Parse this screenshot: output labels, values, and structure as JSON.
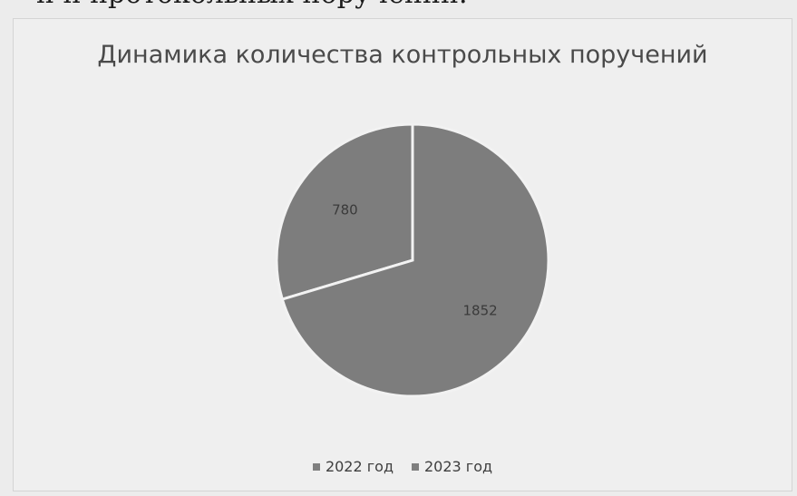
{
  "document": {
    "cut_text": "и и протокольных поручений."
  },
  "chart_data": {
    "type": "pie",
    "title": "Динамика количества контрольных поручений",
    "categories": [
      "2022 год",
      "2023 год"
    ],
    "values": [
      780,
      1852
    ],
    "data_labels": [
      "780",
      "1852"
    ],
    "colors": [
      "#7d7d7d",
      "#7d7d7d"
    ],
    "legend_position": "bottom"
  }
}
